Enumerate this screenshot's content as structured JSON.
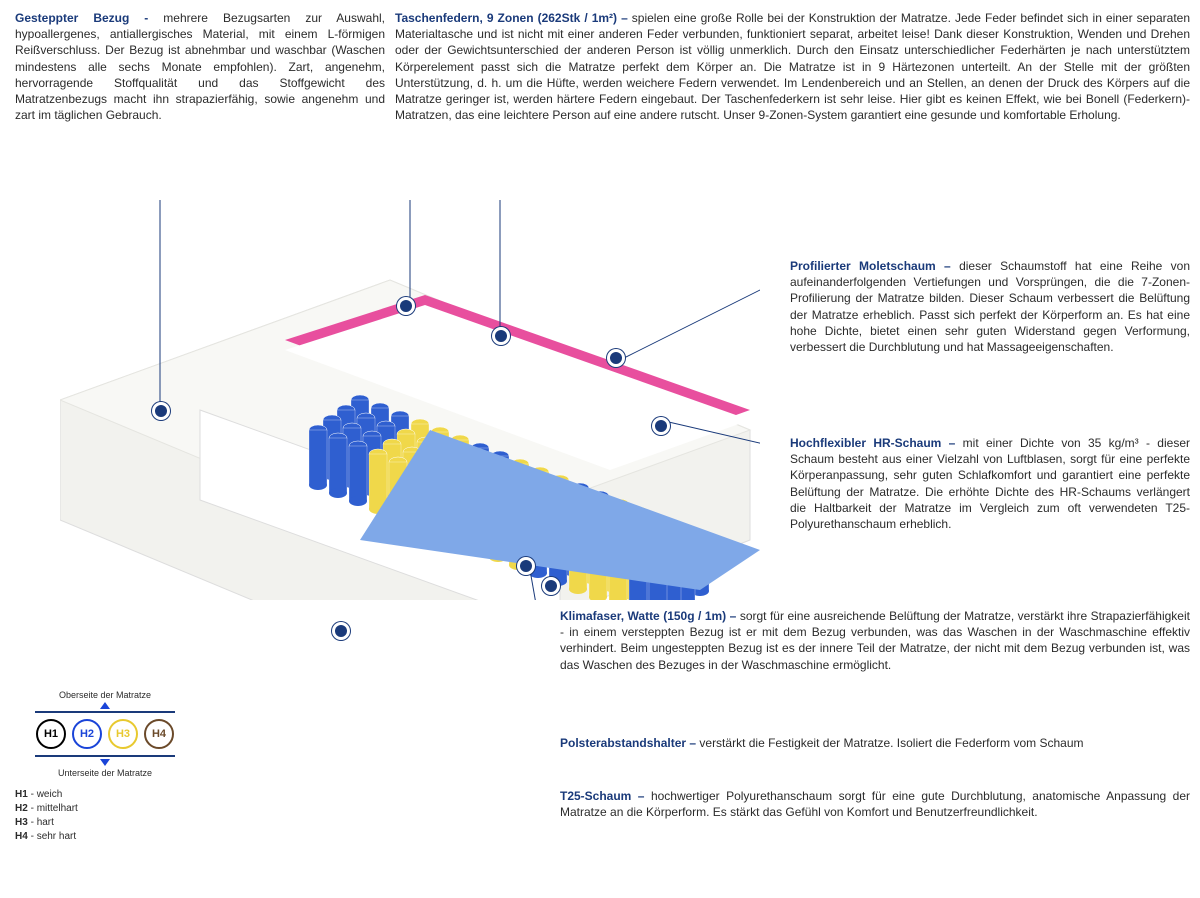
{
  "colors": {
    "title": "#1a3a7a",
    "text": "#2b2b2b",
    "h1": "#000000",
    "h2": "#1a44d8",
    "h3": "#e8c92f",
    "h4": "#6b4a2a",
    "spring_blue": "#2f5fd0",
    "spring_yellow": "#f0d84a",
    "foam_pink": "#e84f9e",
    "base_blue": "#7fa8e8",
    "cover": "#f2f2ee"
  },
  "top_left": {
    "title": "Gesteppter Bezug - ",
    "body": "mehrere Bezugsarten zur Auswahl, hypoallergenes, antiallergisches Material, mit einem L-förmigen Reißverschluss. Der Bezug ist abnehmbar und waschbar (Waschen mindestens alle sechs Monate empfohlen). Zart, angenehm, hervorragende Stoffqualität und das Stoffgewicht des Matratzenbezugs macht ihn strapazierfähig, sowie angenehm und zart im täglichen Gebrauch."
  },
  "top_right": {
    "title": "Taschenfedern, 9 Zonen (262Stk / 1m²) – ",
    "body": "spielen eine große Rolle bei der Konstruktion der Matratze. Jede Feder befindet sich in einer separaten Materialtasche und ist nicht mit einer anderen Feder verbunden, funktioniert separat, arbeitet leise! Dank dieser Konstruktion, Wenden und Drehen oder der Gewichtsunterschied der anderen Person ist völlig unmerklich. Durch den Einsatz unterschiedlicher Federhärten je nach unterstütztem Körperelement passt sich die Matratze perfekt dem Körper an. Die Matratze ist in 9 Härtezonen unterteilt. An der Stelle mit der größten Unterstützung, d. h. um die Hüfte, werden weichere Federn verwendet. Im Lendenbereich und an Stellen, an denen der Druck des Körpers auf die Matratze geringer ist, werden härtere Federn eingebaut. Der Taschenfederkern ist sehr leise. Hier gibt es keinen Effekt, wie bei Bonell (Federkern)- Matratzen, das eine leichtere Person auf eine andere rutscht. Unser 9-Zonen-System garantiert eine gesunde und komfortable Erholung."
  },
  "r1": {
    "title": "Profilierter Moletschaum – ",
    "body": "dieser Schaumstoff hat eine Reihe von aufeinanderfolgenden Vertiefungen und Vorsprüngen, die die 7-Zonen-Profilierung der Matratze bilden. Dieser Schaum verbessert die Belüftung der Matratze erheblich. Passt sich perfekt der Körperform an. Es hat eine hohe Dichte, bietet einen sehr guten Widerstand gegen Verformung, verbessert die Durchblutung und hat Massageeigenschaften."
  },
  "r2": {
    "title": "Hochflexibler HR-Schaum – ",
    "body": "mit einer Dichte von 35 kg/m³ - dieser Schaum besteht aus einer Vielzahl von Luftblasen, sorgt für eine perfekte Körperanpassung, sehr guten Schlafkomfort und garantiert eine perfekte Belüftung der Matratze. Die erhöhte Dichte des HR-Schaums verlängert die Haltbarkeit der Matratze im Vergleich zum oft verwendeten T25-Polyurethanschaum erheblich."
  },
  "m1": {
    "title": "Klimafaser, Watte (150g / 1m) – ",
    "body": "sorgt für eine ausreichende Belüftung der Matratze, verstärkt ihre Strapazierfähigkeit - in einem versteppten Bezug ist er mit dem Bezug verbunden, was das Waschen in der Waschmaschine effektiv verhindert. Beim ungesteppten Bezug ist es der innere Teil der Matratze, der nicht mit dem Bezug verbunden ist, was das Waschen des Bezuges in der Waschmaschine ermöglicht."
  },
  "m2": {
    "title": "Polsterabstandshalter – ",
    "body": "verstärkt die Festigkeit der Matratze. Isoliert die Federform vom Schaum"
  },
  "m3": {
    "title": "T25-Schaum – ",
    "body": "hochwertiger Polyurethanschaum sorgt für eine gute Durchblutung, anatomische Anpassung der Matratze an die Körperform. Es stärkt das Gefühl von Komfort und Benutzerfreundlichkeit."
  },
  "legend": {
    "top": "Oberseite der Matratze",
    "bottom": "Unterseite der Matratze",
    "items": [
      {
        "code": "H1",
        "label": "weich"
      },
      {
        "code": "H2",
        "label": "mittelhart"
      },
      {
        "code": "H3",
        "label": "hart"
      },
      {
        "code": "H4",
        "label": "sehr hart"
      }
    ]
  }
}
